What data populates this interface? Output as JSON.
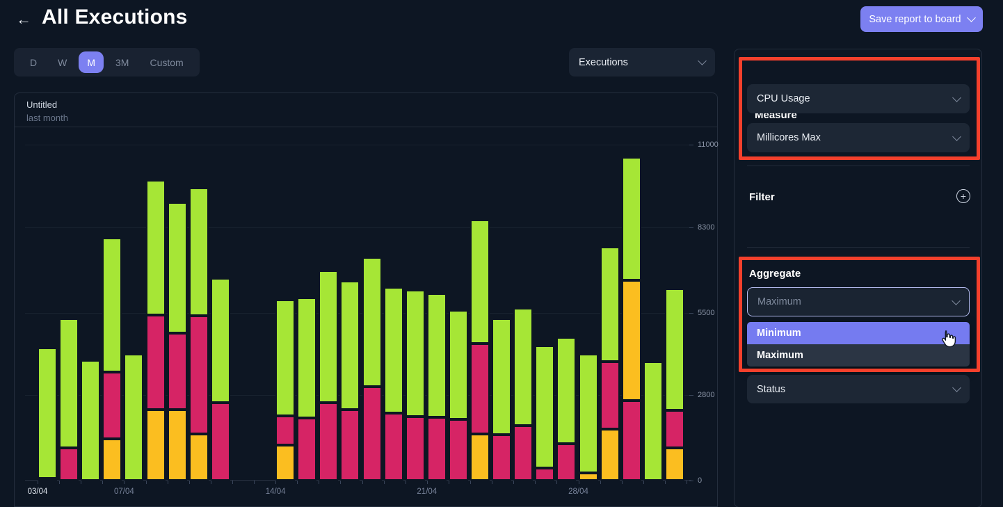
{
  "header": {
    "back_icon": "←",
    "title": "All Executions",
    "save_button_label": "Save report to board"
  },
  "time_range": {
    "options": [
      {
        "label": "D",
        "active": false
      },
      {
        "label": "W",
        "active": false
      },
      {
        "label": "M",
        "active": true
      },
      {
        "label": "3M",
        "active": false
      },
      {
        "label": "Custom",
        "active": false
      }
    ]
  },
  "metric_select": {
    "value": "Executions"
  },
  "panel": {
    "measure": {
      "heading": "Measure",
      "selects": [
        {
          "value": "CPU Usage"
        },
        {
          "value": "Millicores Max"
        }
      ]
    },
    "filter": {
      "heading": "Filter",
      "add_icon": "+"
    },
    "aggregate": {
      "heading": "Aggregate",
      "select_placeholder": "Maximum",
      "menu": [
        {
          "label": "Minimum",
          "highlighted": true
        },
        {
          "label": "Maximum",
          "highlighted": false
        }
      ]
    },
    "status_select": {
      "value": "Status"
    }
  },
  "annotations": {
    "color": "#f4402c"
  },
  "chart_data": {
    "type": "bar",
    "variant": "stacked",
    "title": "Untitled",
    "subtitle": "last month",
    "y_ticks": [
      0,
      2800,
      5500,
      8300,
      11000
    ],
    "y_max": 11000,
    "grid": true,
    "total_slots": 30,
    "x_tick_labels": [
      {
        "label": "03/04",
        "slot": 0
      },
      {
        "label": "07/04",
        "slot": 4
      },
      {
        "label": "14/04",
        "slot": 11
      },
      {
        "label": "21/04",
        "slot": 18
      },
      {
        "label": "28/04",
        "slot": 25
      }
    ],
    "series_colors": {
      "green": "#a6e636",
      "pink": "#d62465",
      "orange": "#fbbe20"
    },
    "bars": [
      {
        "slot": 0,
        "segments": [
          {
            "color": "pink",
            "value": 70
          },
          {
            "color": "green",
            "value": 4280
          }
        ]
      },
      {
        "slot": 1,
        "segments": [
          {
            "color": "pink",
            "value": 1070
          },
          {
            "color": "green",
            "value": 4240
          }
        ]
      },
      {
        "slot": 2,
        "segments": [
          {
            "color": "green",
            "value": 3940
          }
        ]
      },
      {
        "slot": 3,
        "segments": [
          {
            "color": "orange",
            "value": 1370
          },
          {
            "color": "pink",
            "value": 2190
          },
          {
            "color": "green",
            "value": 4400
          }
        ]
      },
      {
        "slot": 4,
        "segments": [
          {
            "color": "green",
            "value": 4150
          }
        ]
      },
      {
        "slot": 5,
        "segments": [
          {
            "color": "orange",
            "value": 2330
          },
          {
            "color": "pink",
            "value": 3100
          },
          {
            "color": "green",
            "value": 4400
          }
        ]
      },
      {
        "slot": 6,
        "segments": [
          {
            "color": "orange",
            "value": 2330
          },
          {
            "color": "pink",
            "value": 2500
          },
          {
            "color": "green",
            "value": 4290
          }
        ]
      },
      {
        "slot": 7,
        "segments": [
          {
            "color": "orange",
            "value": 1530
          },
          {
            "color": "pink",
            "value": 3870
          },
          {
            "color": "green",
            "value": 4200
          }
        ]
      },
      {
        "slot": 8,
        "segments": [
          {
            "color": "pink",
            "value": 2550
          },
          {
            "color": "green",
            "value": 4080
          }
        ]
      },
      {
        "slot": 11,
        "segments": [
          {
            "color": "orange",
            "value": 1160
          },
          {
            "color": "pink",
            "value": 960
          },
          {
            "color": "green",
            "value": 3810
          }
        ]
      },
      {
        "slot": 12,
        "segments": [
          {
            "color": "pink",
            "value": 2050
          },
          {
            "color": "green",
            "value": 3950
          }
        ]
      },
      {
        "slot": 13,
        "segments": [
          {
            "color": "pink",
            "value": 2550
          },
          {
            "color": "green",
            "value": 4330
          }
        ]
      },
      {
        "slot": 14,
        "segments": [
          {
            "color": "pink",
            "value": 2330
          },
          {
            "color": "green",
            "value": 4210
          }
        ]
      },
      {
        "slot": 15,
        "segments": [
          {
            "color": "pink",
            "value": 3080
          },
          {
            "color": "green",
            "value": 4240
          }
        ]
      },
      {
        "slot": 16,
        "segments": [
          {
            "color": "pink",
            "value": 2210
          },
          {
            "color": "green",
            "value": 4130
          }
        ]
      },
      {
        "slot": 17,
        "segments": [
          {
            "color": "pink",
            "value": 2100
          },
          {
            "color": "green",
            "value": 4130
          }
        ]
      },
      {
        "slot": 18,
        "segments": [
          {
            "color": "pink",
            "value": 2070
          },
          {
            "color": "green",
            "value": 4060
          }
        ]
      },
      {
        "slot": 19,
        "segments": [
          {
            "color": "pink",
            "value": 2010
          },
          {
            "color": "green",
            "value": 3580
          }
        ]
      },
      {
        "slot": 20,
        "segments": [
          {
            "color": "orange",
            "value": 1530
          },
          {
            "color": "pink",
            "value": 2960
          },
          {
            "color": "green",
            "value": 4060
          }
        ]
      },
      {
        "slot": 21,
        "segments": [
          {
            "color": "pink",
            "value": 1500
          },
          {
            "color": "green",
            "value": 3810
          }
        ]
      },
      {
        "slot": 22,
        "segments": [
          {
            "color": "pink",
            "value": 1800
          },
          {
            "color": "green",
            "value": 3850
          }
        ]
      },
      {
        "slot": 23,
        "segments": [
          {
            "color": "pink",
            "value": 410
          },
          {
            "color": "green",
            "value": 4010
          }
        ]
      },
      {
        "slot": 24,
        "segments": [
          {
            "color": "pink",
            "value": 1210
          },
          {
            "color": "green",
            "value": 3490
          }
        ]
      },
      {
        "slot": 25,
        "segments": [
          {
            "color": "orange",
            "value": 250
          },
          {
            "color": "green",
            "value": 3900
          }
        ]
      },
      {
        "slot": 26,
        "segments": [
          {
            "color": "orange",
            "value": 1690
          },
          {
            "color": "pink",
            "value": 2210
          },
          {
            "color": "green",
            "value": 3760
          }
        ]
      },
      {
        "slot": 27,
        "segments": [
          {
            "color": "pink",
            "value": 2620
          },
          {
            "color": "orange",
            "value": 3950
          },
          {
            "color": "green",
            "value": 4010
          }
        ]
      },
      {
        "slot": 28,
        "segments": [
          {
            "color": "green",
            "value": 3900
          }
        ]
      },
      {
        "slot": 29,
        "segments": [
          {
            "color": "orange",
            "value": 1070
          },
          {
            "color": "pink",
            "value": 1230
          },
          {
            "color": "green",
            "value": 3990
          }
        ]
      }
    ]
  }
}
